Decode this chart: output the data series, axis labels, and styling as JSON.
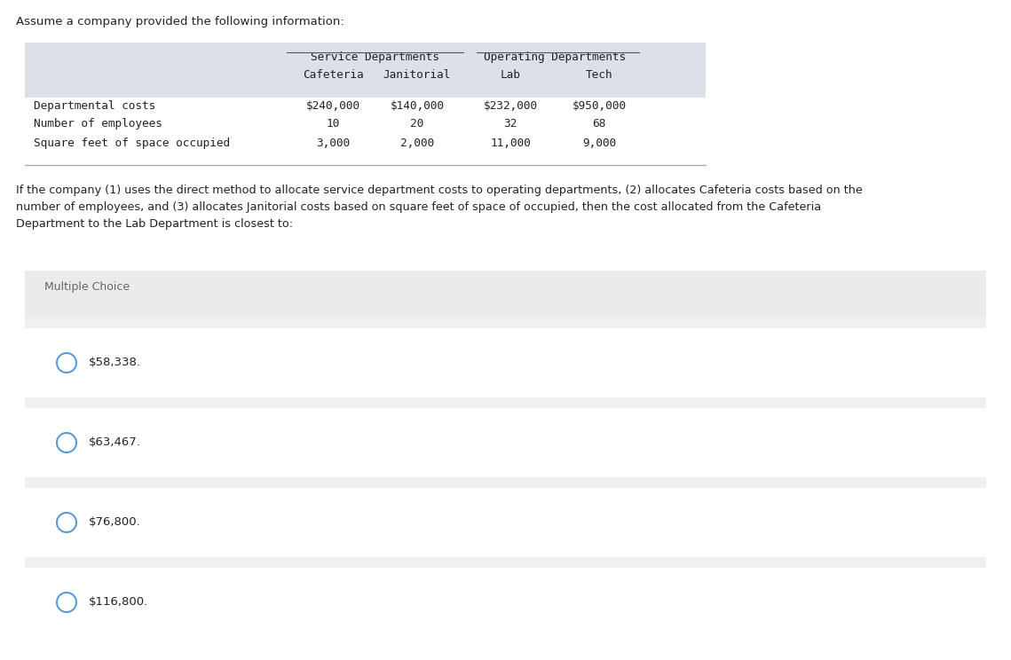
{
  "title_text": "Assume a company provided the following information:",
  "table_header_row1_serv": "Service Departments",
  "table_header_row1_oper": "Operating Departments",
  "table_header_row2": [
    "Cafeteria",
    "Janitorial",
    "Lab",
    "Tech"
  ],
  "table_rows": [
    [
      "Departmental costs",
      "$240,000",
      "$140,000",
      "$232,000",
      "$950,000"
    ],
    [
      "Number of employees",
      "10",
      "20",
      "32",
      "68"
    ],
    [
      "Square feet of space occupied",
      "3,000",
      "2,000",
      "11,000",
      "9,000"
    ]
  ],
  "question_text": "If the company (1) uses the direct method to allocate service department costs to operating departments, (2) allocates Cafeteria costs based on the\nnumber of employees, and (3) allocates Janitorial costs based on square feet of space of occupied, then the cost allocated from the Cafeteria\nDepartment to the Lab Department is closest to:",
  "multiple_choice_label": "Multiple Choice",
  "choices": [
    "$58,338.",
    "$63,467.",
    "$76,800.",
    "$116,800."
  ],
  "bg_color": "#ffffff",
  "table_bg": "#dde0e8",
  "mc_header_bg": "#ebebeb",
  "choice_bg": "#ffffff",
  "gap_bg": "#f0f0f0",
  "choice_border": "#cccccc",
  "circle_color": "#5b9bd5",
  "text_color": "#222222",
  "light_text": "#666666",
  "table_font": "monospace",
  "body_font": "DejaVu Sans",
  "underline_color": "#555555"
}
